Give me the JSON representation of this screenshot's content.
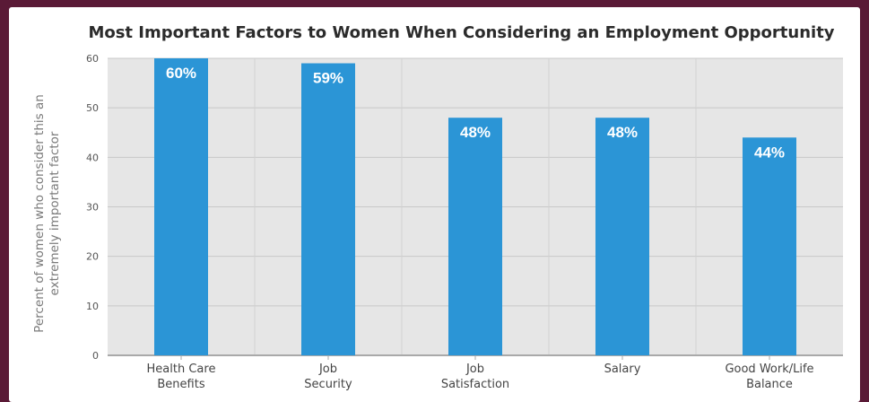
{
  "chart_data": {
    "type": "bar",
    "title": "Most Important Factors to Women When Considering an Employment Opportunity",
    "ylabel": "Percent of women who consider this an extremely important factor",
    "xlabel": "",
    "categories": [
      [
        "Health Care",
        "Benefits"
      ],
      [
        "Job",
        "Security"
      ],
      [
        "Job",
        "Satisfaction"
      ],
      [
        "Salary"
      ],
      [
        "Good Work/Life",
        "Balance"
      ]
    ],
    "values": [
      60,
      59,
      48,
      48,
      44
    ],
    "data_labels": [
      "60%",
      "59%",
      "48%",
      "48%",
      "44%"
    ],
    "ylim": [
      0,
      60
    ],
    "yticks": [
      0,
      10,
      20,
      30,
      40,
      50,
      60
    ],
    "grid": true,
    "bar_color": "#2b95d6",
    "label_color": "#ffffff"
  }
}
